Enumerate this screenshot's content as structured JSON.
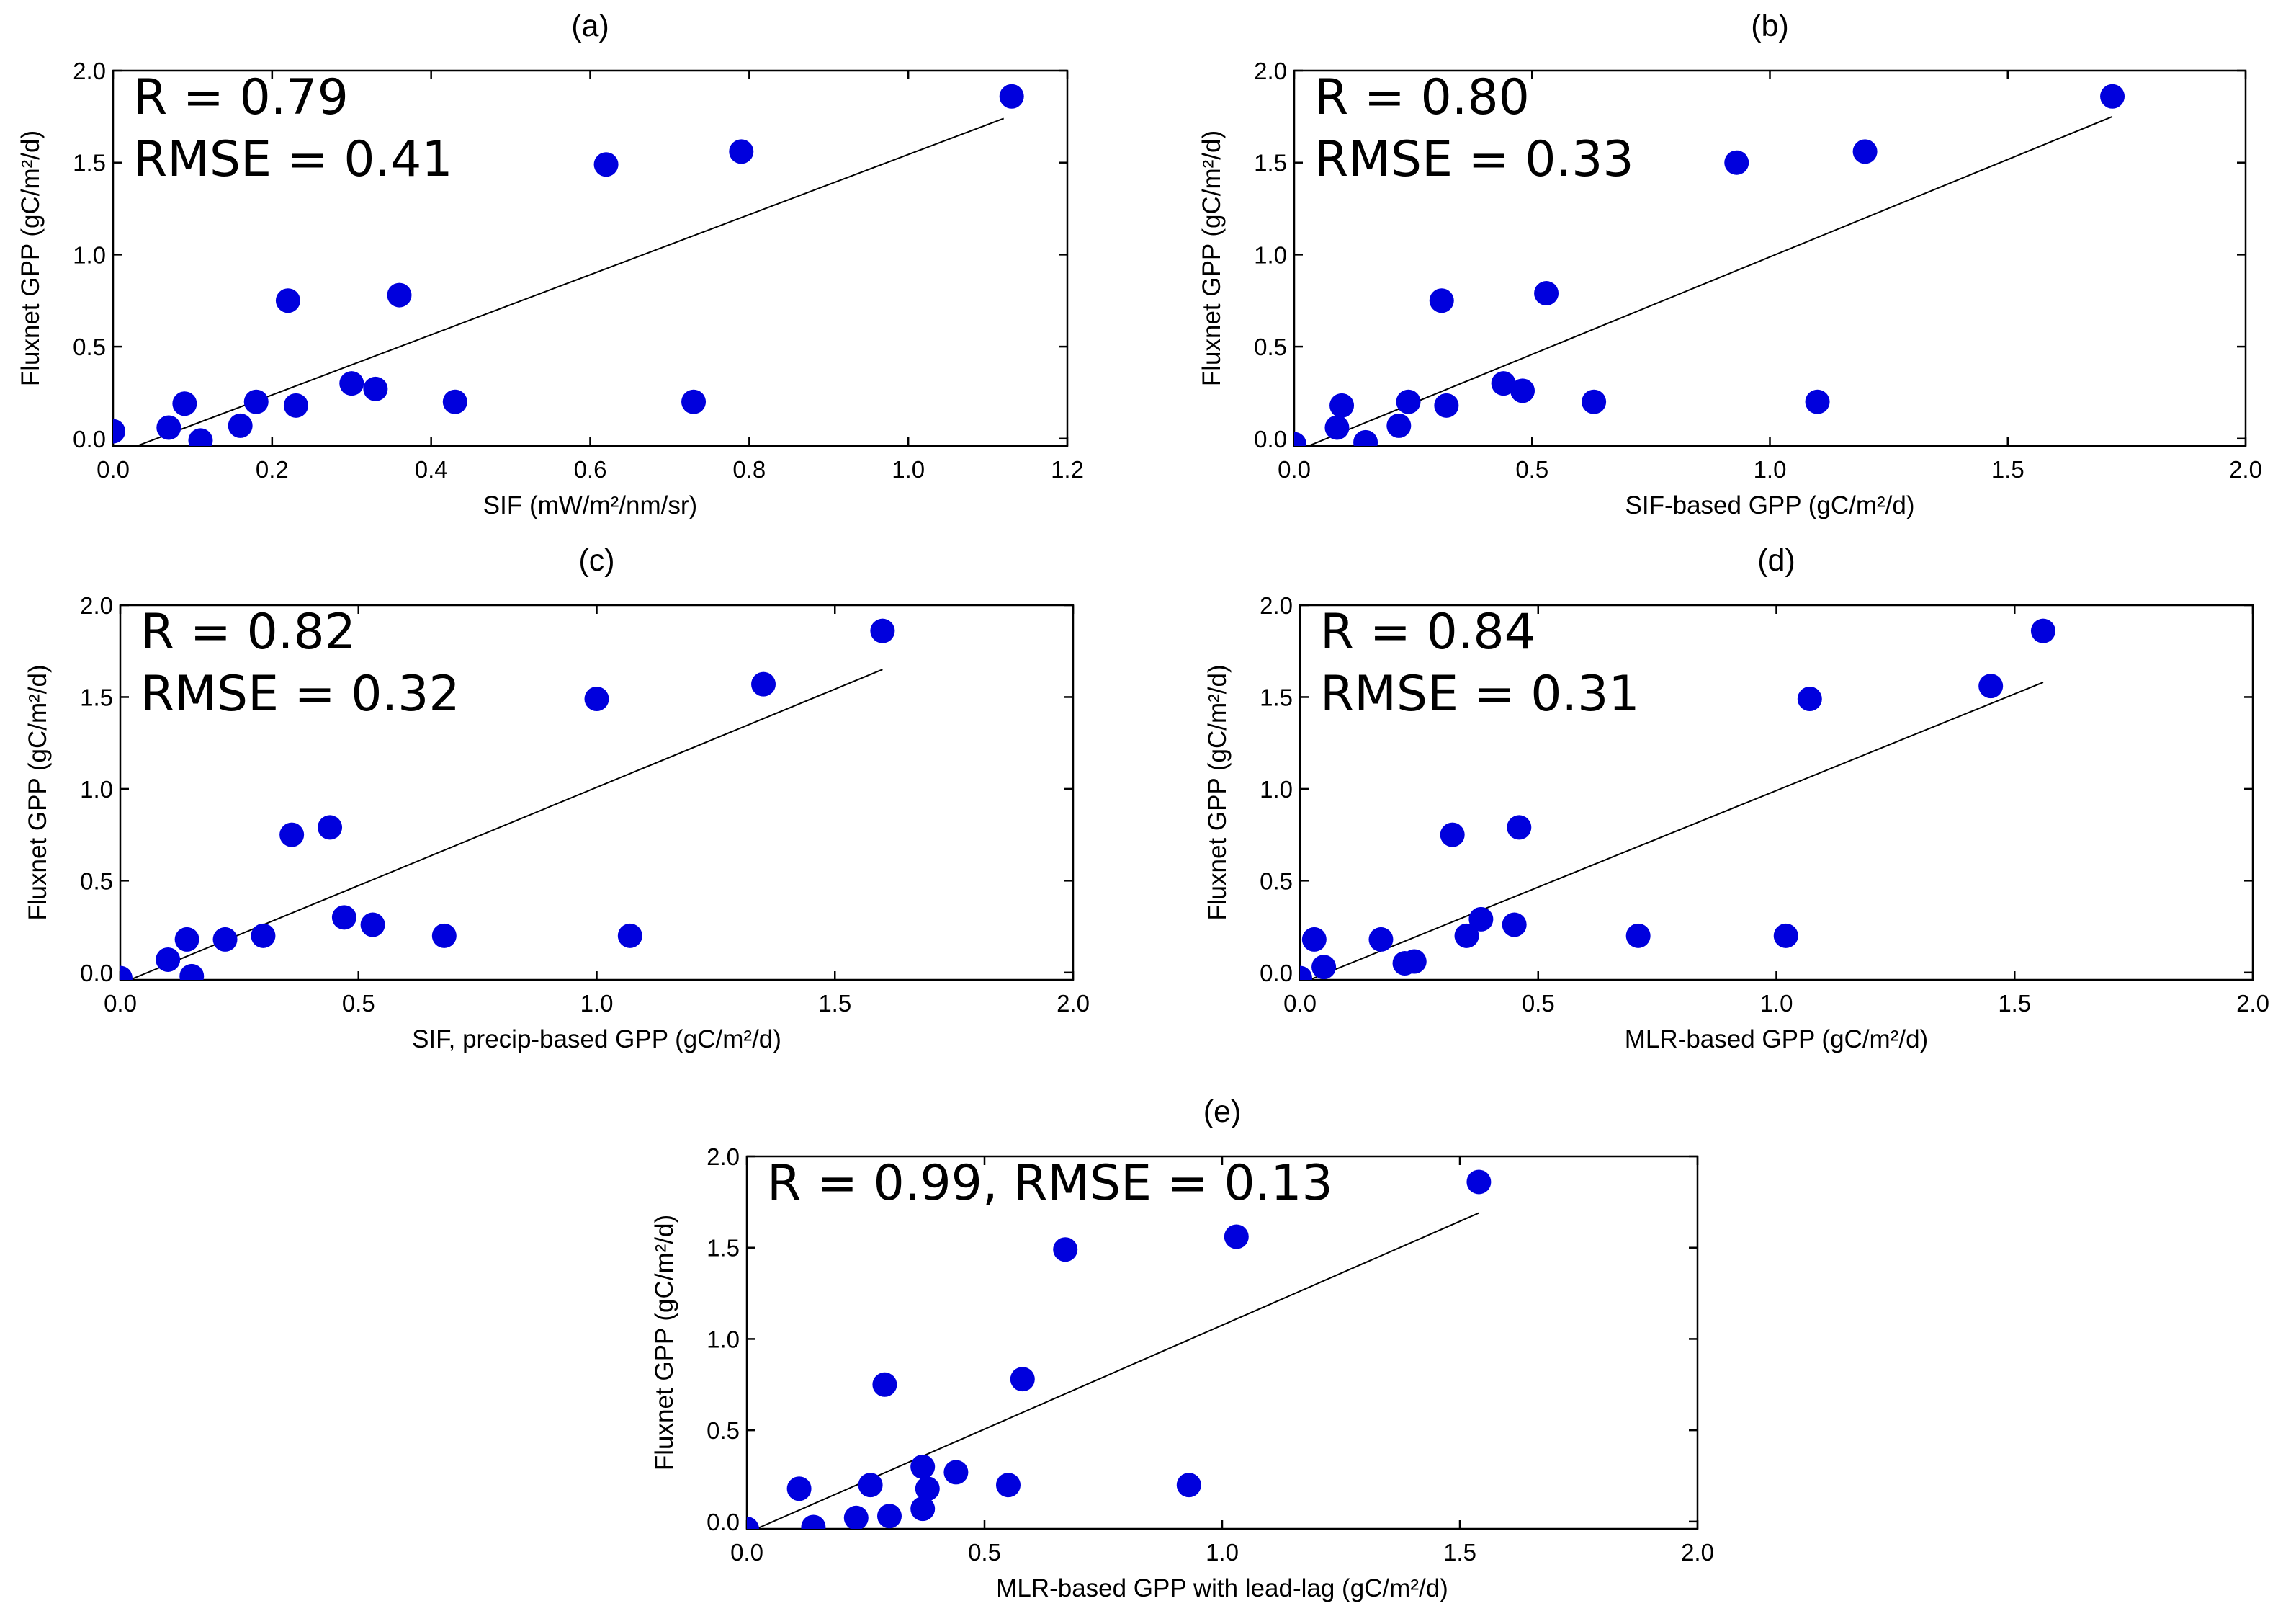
{
  "chart_data": [
    {
      "type": "scatter",
      "panel_label": "(a)",
      "xlabel": "SIF (mW/m²/nm/sr)",
      "ylabel": "Fluxnet GPP (gC/m²/d)",
      "xlim": [
        0,
        1.2
      ],
      "ylim": [
        -0.04,
        2.0
      ],
      "xticks": [
        "0.0",
        "0.2",
        "0.4",
        "0.6",
        "0.8",
        "1.0",
        "1.2"
      ],
      "yticks": [
        "0.0",
        "0.5",
        "1.0",
        "1.5",
        "2.0"
      ],
      "stats": [
        "R = 0.79",
        "RMSE = 0.41"
      ],
      "marker_color": "#0000dd",
      "fit_line": [
        [
          0.03,
          -0.04
        ],
        [
          1.12,
          1.74
        ]
      ],
      "x": [
        0.0,
        0.07,
        0.09,
        0.11,
        0.16,
        0.18,
        0.22,
        0.23,
        0.3,
        0.33,
        0.36,
        0.43,
        0.62,
        0.73,
        0.79,
        1.13
      ],
      "y": [
        0.04,
        0.06,
        0.19,
        -0.01,
        0.07,
        0.2,
        0.75,
        0.18,
        0.3,
        0.27,
        0.78,
        0.2,
        1.49,
        0.2,
        1.56,
        1.86
      ]
    },
    {
      "type": "scatter",
      "panel_label": "(b)",
      "xlabel": "SIF-based GPP (gC/m²/d)",
      "ylabel": "Fluxnet GPP (gC/m²/d)",
      "xlim": [
        0,
        2.0
      ],
      "ylim": [
        -0.04,
        2.0
      ],
      "xticks": [
        "0.0",
        "0.5",
        "1.0",
        "1.5",
        "2.0"
      ],
      "yticks": [
        "0.0",
        "0.5",
        "1.0",
        "1.5",
        "2.0"
      ],
      "stats": [
        "R = 0.80",
        "RMSE = 0.33"
      ],
      "marker_color": "#0000dd",
      "fit_line": [
        [
          0.03,
          -0.04
        ],
        [
          1.72,
          1.75
        ]
      ],
      "x": [
        0.0,
        0.09,
        0.1,
        0.15,
        0.22,
        0.24,
        0.31,
        0.32,
        0.44,
        0.48,
        0.53,
        0.63,
        0.93,
        1.1,
        1.2,
        1.72
      ],
      "y": [
        -0.03,
        0.06,
        0.18,
        -0.02,
        0.07,
        0.2,
        0.75,
        0.18,
        0.3,
        0.26,
        0.79,
        0.2,
        1.5,
        0.2,
        1.56,
        1.86
      ]
    },
    {
      "type": "scatter",
      "panel_label": "(c)",
      "xlabel": "SIF, precip-based GPP (gC/m²/d)",
      "ylabel": "Fluxnet GPP (gC/m²/d)",
      "xlim": [
        0,
        2.0
      ],
      "ylim": [
        -0.04,
        2.0
      ],
      "xticks": [
        "0.0",
        "0.5",
        "1.0",
        "1.5",
        "2.0"
      ],
      "yticks": [
        "0.0",
        "0.5",
        "1.0",
        "1.5",
        "2.0"
      ],
      "stats": [
        "R = 0.82",
        "RMSE = 0.32"
      ],
      "marker_color": "#0000dd",
      "fit_line": [
        [
          0.02,
          -0.04
        ],
        [
          1.6,
          1.65
        ]
      ],
      "x": [
        0.0,
        0.1,
        0.14,
        0.15,
        0.22,
        0.3,
        0.36,
        0.44,
        0.47,
        0.53,
        0.68,
        1.0,
        1.07,
        1.35,
        1.6
      ],
      "y": [
        -0.03,
        0.07,
        0.18,
        -0.02,
        0.18,
        0.2,
        0.75,
        0.79,
        0.3,
        0.26,
        0.2,
        1.49,
        0.2,
        1.57,
        1.86
      ]
    },
    {
      "type": "scatter",
      "panel_label": "(d)",
      "xlabel": "MLR-based GPP (gC/m²/d)",
      "ylabel": "Fluxnet GPP (gC/m²/d)",
      "xlim": [
        0,
        2.0
      ],
      "ylim": [
        -0.04,
        2.0
      ],
      "xticks": [
        "0.0",
        "0.5",
        "1.0",
        "1.5",
        "2.0"
      ],
      "yticks": [
        "0.0",
        "0.5",
        "1.0",
        "1.5",
        "2.0"
      ],
      "stats": [
        "R = 0.84",
        "RMSE = 0.31"
      ],
      "marker_color": "#0000dd",
      "fit_line": [
        [
          0.02,
          -0.04
        ],
        [
          1.56,
          1.58
        ]
      ],
      "x": [
        0.0,
        0.03,
        0.05,
        0.17,
        0.22,
        0.24,
        0.32,
        0.35,
        0.38,
        0.45,
        0.46,
        0.71,
        1.02,
        1.07,
        1.45,
        1.56
      ],
      "y": [
        -0.03,
        0.18,
        0.03,
        0.18,
        0.05,
        0.06,
        0.75,
        0.2,
        0.29,
        0.26,
        0.79,
        0.2,
        0.2,
        1.49,
        1.56,
        1.86
      ]
    },
    {
      "type": "scatter",
      "panel_label": "(e)",
      "xlabel": "MLR-based GPP with lead-lag (gC/m²/d)",
      "ylabel": "Fluxnet GPP (gC/m²/d)",
      "xlim": [
        0,
        2.0
      ],
      "ylim": [
        -0.04,
        2.0
      ],
      "xticks": [
        "0.0",
        "0.5",
        "1.0",
        "1.5",
        "2.0"
      ],
      "yticks": [
        "0.0",
        "0.5",
        "1.0",
        "1.5",
        "2.0"
      ],
      "stats": [
        "R = 0.99, RMSE = 0.13"
      ],
      "marker_color": "#0000dd",
      "fit_line": [
        [
          0.02,
          -0.04
        ],
        [
          1.54,
          1.69
        ]
      ],
      "x": [
        0.0,
        0.11,
        0.14,
        0.23,
        0.26,
        0.29,
        0.3,
        0.37,
        0.37,
        0.38,
        0.44,
        0.55,
        0.58,
        0.67,
        0.93,
        1.03,
        1.54
      ],
      "y": [
        -0.04,
        0.18,
        -0.03,
        0.02,
        0.2,
        0.75,
        0.03,
        0.3,
        0.07,
        0.18,
        0.27,
        0.2,
        0.78,
        1.49,
        0.2,
        1.56,
        1.86
      ]
    }
  ]
}
